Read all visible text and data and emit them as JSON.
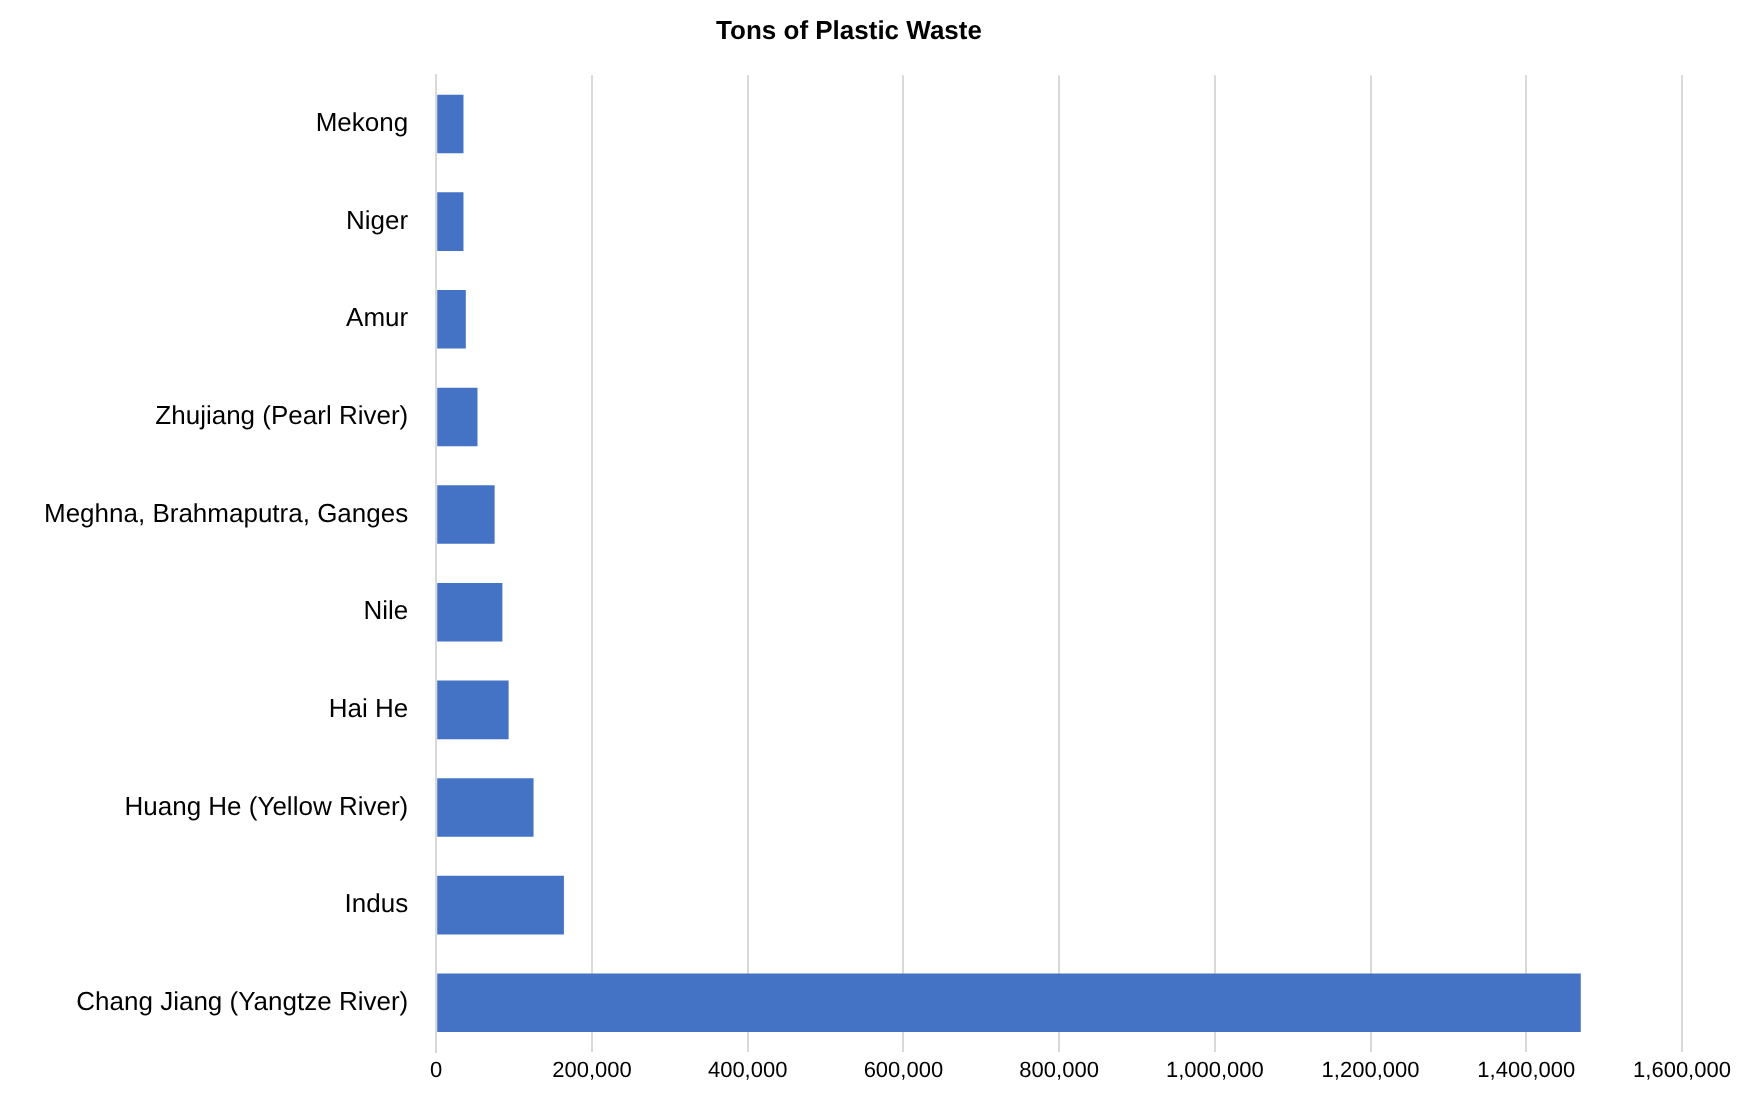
{
  "chart_data": {
    "type": "bar",
    "orientation": "horizontal",
    "title": "Tons of Plastic Waste",
    "categories": [
      "Mekong",
      "Niger",
      "Amur",
      "Zhujiang (Pearl River)",
      "Meghna, Brahmaputra, Ganges",
      "Nile",
      "Hai He",
      "Huang He (Yellow River)",
      "Indus",
      "Chang Jiang (Yangtze River)"
    ],
    "values": [
      35000,
      35000,
      38000,
      53000,
      75000,
      85000,
      93000,
      125000,
      164000,
      1470000
    ],
    "color": "#4472c4",
    "xlim": [
      0,
      1600000
    ],
    "xticks": [
      {
        "value": 0,
        "label": "0"
      },
      {
        "value": 200000,
        "label": "200,000"
      },
      {
        "value": 400000,
        "label": "400,000"
      },
      {
        "value": 600000,
        "label": "600,000"
      },
      {
        "value": 800000,
        "label": "800,000"
      },
      {
        "value": 1000000,
        "label": "1,000,000"
      },
      {
        "value": 1200000,
        "label": "1,200,000"
      },
      {
        "value": 1400000,
        "label": "1,400,000"
      },
      {
        "value": 1600000,
        "label": "1,600,000"
      }
    ],
    "grid": "x"
  }
}
